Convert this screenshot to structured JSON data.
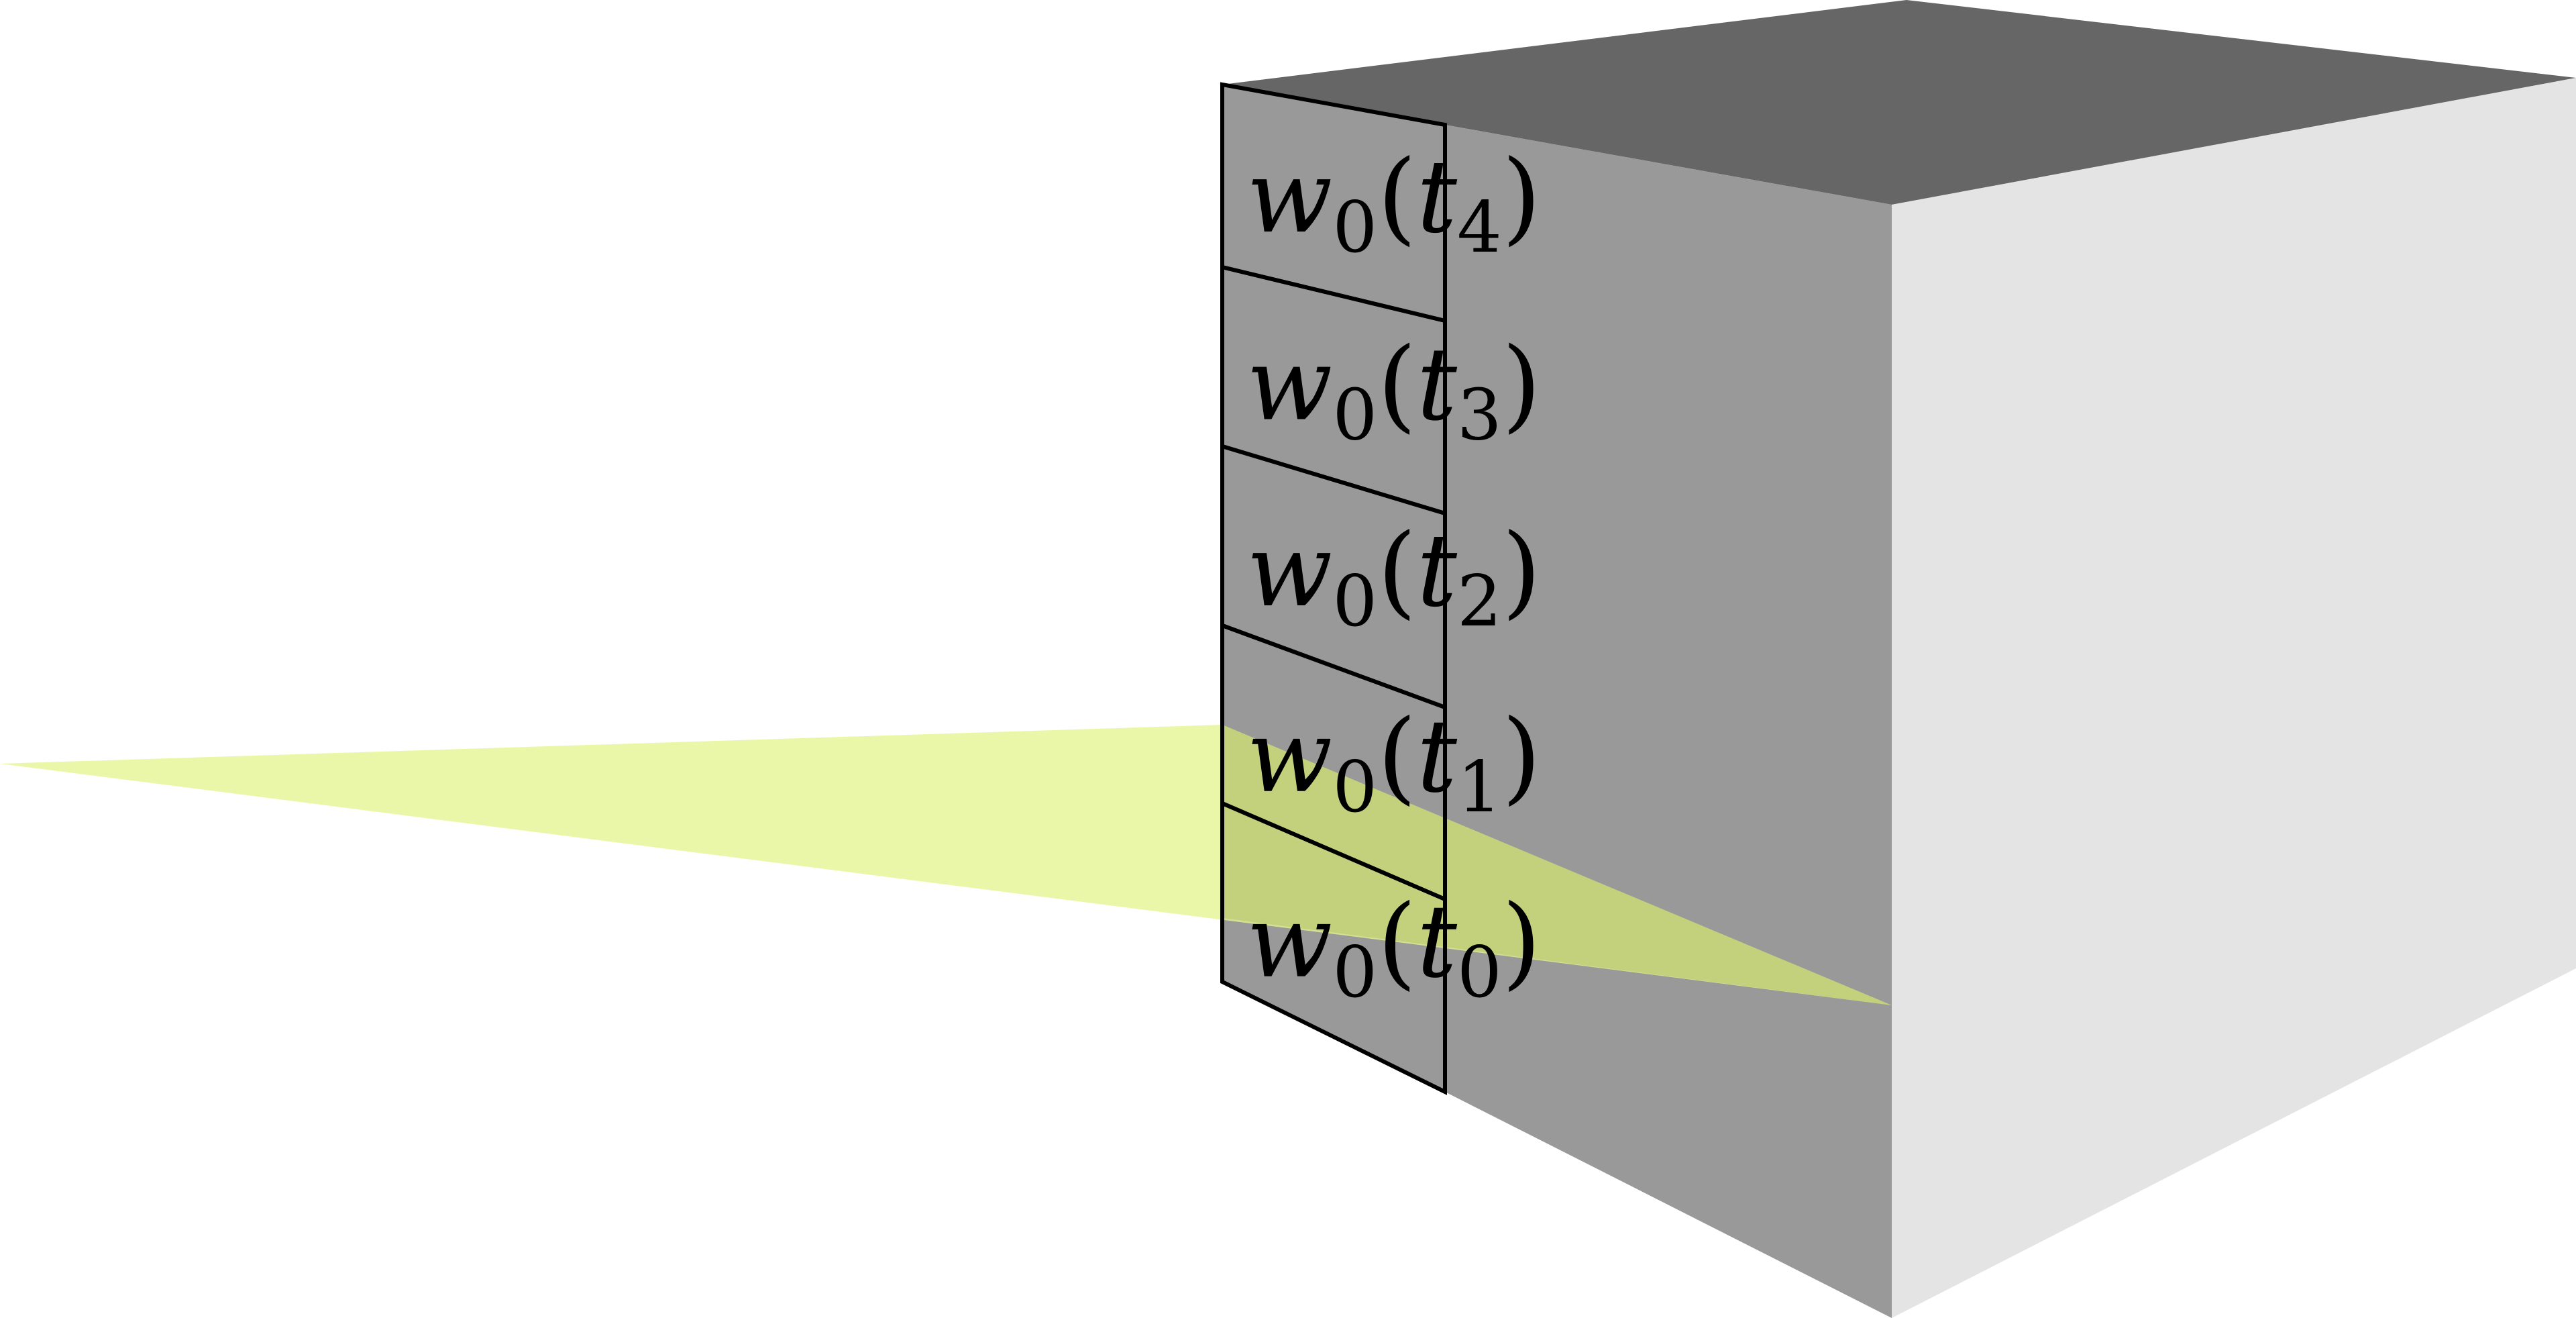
{
  "colors": {
    "top_face": "#666666",
    "left_face": "#999999",
    "right_face": "#e4e4e4",
    "beam": "#e6f58f",
    "beam_overlap": "#c2cb7a",
    "outline": "#000000"
  },
  "labels": [
    {
      "func": "w",
      "func_sub": "0",
      "var": "t",
      "var_sub": "4"
    },
    {
      "func": "w",
      "func_sub": "0",
      "var": "t",
      "var_sub": "3"
    },
    {
      "func": "w",
      "func_sub": "0",
      "var": "t",
      "var_sub": "2"
    },
    {
      "func": "w",
      "func_sub": "0",
      "var": "t",
      "var_sub": "1"
    },
    {
      "func": "w",
      "func_sub": "0",
      "var": "t",
      "var_sub": "0"
    }
  ]
}
